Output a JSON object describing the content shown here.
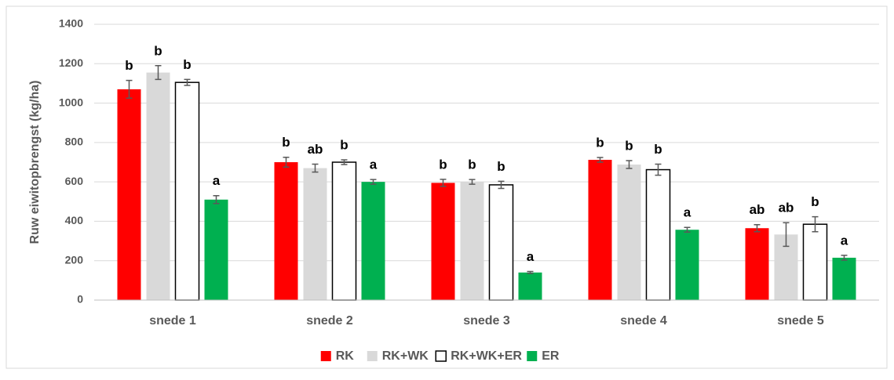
{
  "chart_data": {
    "type": "bar",
    "y_label": "Ruw eiwitopbrengst (kg/ha)",
    "categories": [
      "snede 1",
      "snede 2",
      "snede 3",
      "snede 4",
      "snede 5"
    ],
    "series": [
      {
        "name": "RK",
        "color": "#ff0000",
        "values": [
          1070,
          700,
          595,
          712,
          365
        ],
        "errors": [
          45,
          25,
          18,
          12,
          18
        ],
        "letters": [
          "b",
          "b",
          "b",
          "b",
          "ab"
        ]
      },
      {
        "name": "RK+WK",
        "color": "#d9d9d9",
        "values": [
          1155,
          670,
          600,
          688,
          333
        ],
        "errors": [
          35,
          20,
          12,
          20,
          60
        ],
        "letters": [
          "b",
          "ab",
          "b",
          "b",
          "ab"
        ]
      },
      {
        "name": "RK+WK+ER",
        "color": "#ffffff",
        "values": [
          1105,
          700,
          585,
          662,
          385
        ],
        "errors": [
          15,
          12,
          18,
          28,
          38
        ],
        "letters": [
          "b",
          "b",
          "b",
          "b",
          "b"
        ]
      },
      {
        "name": "ER",
        "color": "#00b050",
        "values": [
          510,
          600,
          140,
          357,
          215
        ],
        "errors": [
          20,
          12,
          5,
          12,
          12
        ],
        "letters": [
          "a",
          "a",
          "a",
          "a",
          "a"
        ]
      }
    ],
    "ylim": [
      0,
      1400
    ],
    "yticks": [
      0,
      200,
      400,
      600,
      800,
      1000,
      1200,
      1400
    ],
    "grid": true,
    "legend": "bottom"
  }
}
